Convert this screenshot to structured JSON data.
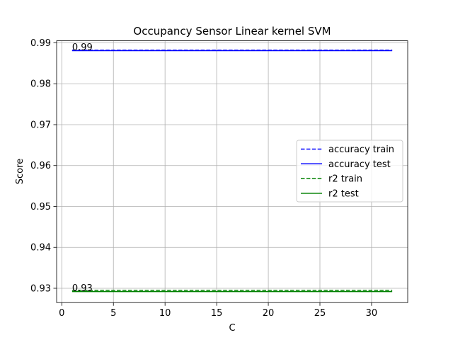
{
  "chart_data": {
    "type": "line",
    "title": "Occupancy Sensor Linear kernel SVM",
    "xlabel": "C",
    "ylabel": "Score",
    "xlim": [
      -0.5,
      33.5
    ],
    "ylim": [
      0.9265,
      0.9905
    ],
    "x_ticks": [
      0,
      5,
      10,
      15,
      20,
      25,
      30
    ],
    "y_ticks": [
      0.93,
      0.94,
      0.95,
      0.96,
      0.97,
      0.98,
      0.99
    ],
    "x_tick_labels": [
      "0",
      "5",
      "10",
      "15",
      "20",
      "25",
      "30"
    ],
    "y_tick_labels": [
      "0.93",
      "0.94",
      "0.95",
      "0.96",
      "0.97",
      "0.98",
      "0.99"
    ],
    "grid": true,
    "legend_position": "center-right",
    "x": [
      1,
      32
    ],
    "series": [
      {
        "name": "accuracy train",
        "values": [
          0.9882,
          0.9882
        ],
        "color": "#0000ff",
        "style": "dashed"
      },
      {
        "name": "accuracy test",
        "values": [
          0.9881,
          0.9881
        ],
        "color": "#0000ff",
        "style": "solid"
      },
      {
        "name": "r2 train",
        "values": [
          0.9295,
          0.9295
        ],
        "color": "#008000",
        "style": "dashed"
      },
      {
        "name": "r2 test",
        "values": [
          0.9292,
          0.9292
        ],
        "color": "#008000",
        "style": "solid"
      }
    ],
    "annotations": [
      {
        "text": "0.99",
        "x": 1,
        "y": 0.9881
      },
      {
        "text": "0.93",
        "x": 1,
        "y": 0.9292
      }
    ]
  }
}
